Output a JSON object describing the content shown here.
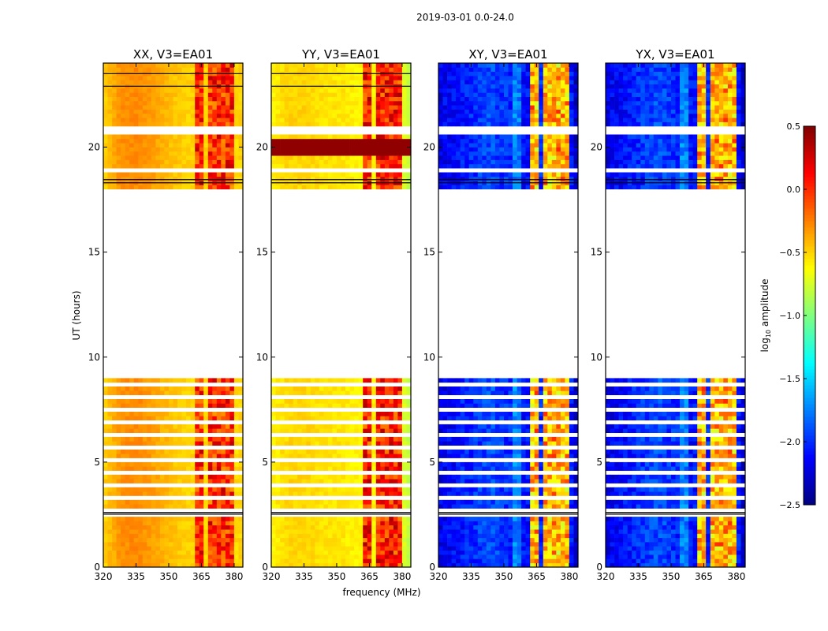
{
  "chart_data": {
    "type": "heatmap",
    "title": "2019-03-01 0.0-24.0",
    "xlabel": "frequency (MHz)",
    "ylabel": "UT (hours)",
    "xlim": [
      320,
      384
    ],
    "ylim": [
      0,
      24
    ],
    "xticks": [
      "320",
      "335",
      "350",
      "365",
      "380"
    ],
    "xtick_values": [
      320,
      335,
      350,
      365,
      380
    ],
    "yticks": [
      "0",
      "5",
      "10",
      "15",
      "20"
    ],
    "ytick_values": [
      0,
      5,
      10,
      15,
      20
    ],
    "colorbar": {
      "label_prefix": "log",
      "label_sub": "10",
      "label_suffix": " amplitude",
      "range": [
        -2.5,
        0.5
      ],
      "ticks": [
        "0.5",
        "0.0",
        "−0.5",
        "−1.0",
        "−1.5",
        "−2.0",
        "−2.5"
      ],
      "tick_values": [
        0.5,
        0.0,
        -0.5,
        -1.0,
        -1.5,
        -2.0,
        -2.5
      ],
      "colormap": "jet"
    },
    "data_time_ranges": [
      [
        0,
        2.5
      ],
      [
        2.6,
        9.0
      ],
      [
        18.0,
        18.8
      ],
      [
        19.0,
        20.6
      ],
      [
        20.9,
        24
      ]
    ],
    "striped_range": [
      2.7,
      8.8
    ],
    "rfi_channels_mhz": [
      [
        363,
        367
      ],
      [
        368,
        372
      ],
      [
        373,
        376
      ],
      [
        377,
        380
      ]
    ],
    "panels": [
      {
        "title": "XX, V3=EA01",
        "base_profile": [
          -0.5,
          -0.3,
          -0.28,
          -0.35,
          -0.45,
          -0.5,
          -0.5,
          -0.55,
          -0.5
        ],
        "rfi_level": 0.3,
        "edge_level": -0.5
      },
      {
        "title": "YY, V3=EA01",
        "base_profile": [
          -0.6,
          -0.5,
          -0.5,
          -0.55,
          -0.55,
          -0.6,
          -0.6,
          -0.6,
          -0.8
        ],
        "rfi_level": 0.35,
        "edge_level": -0.8
      },
      {
        "title": "XY, V3=EA01",
        "base_profile": [
          -2.2,
          -2.1,
          -2.0,
          -1.9,
          -2.0,
          -2.1,
          -2.0,
          -1.7,
          -2.3
        ],
        "rfi_level": -0.1,
        "edge_level": -2.3
      },
      {
        "title": "YX, V3=EA01",
        "base_profile": [
          -2.2,
          -2.1,
          -2.0,
          -1.9,
          -2.0,
          -2.1,
          -2.0,
          -1.7,
          -2.3
        ],
        "rfi_level": -0.1,
        "edge_level": -2.3
      }
    ]
  }
}
